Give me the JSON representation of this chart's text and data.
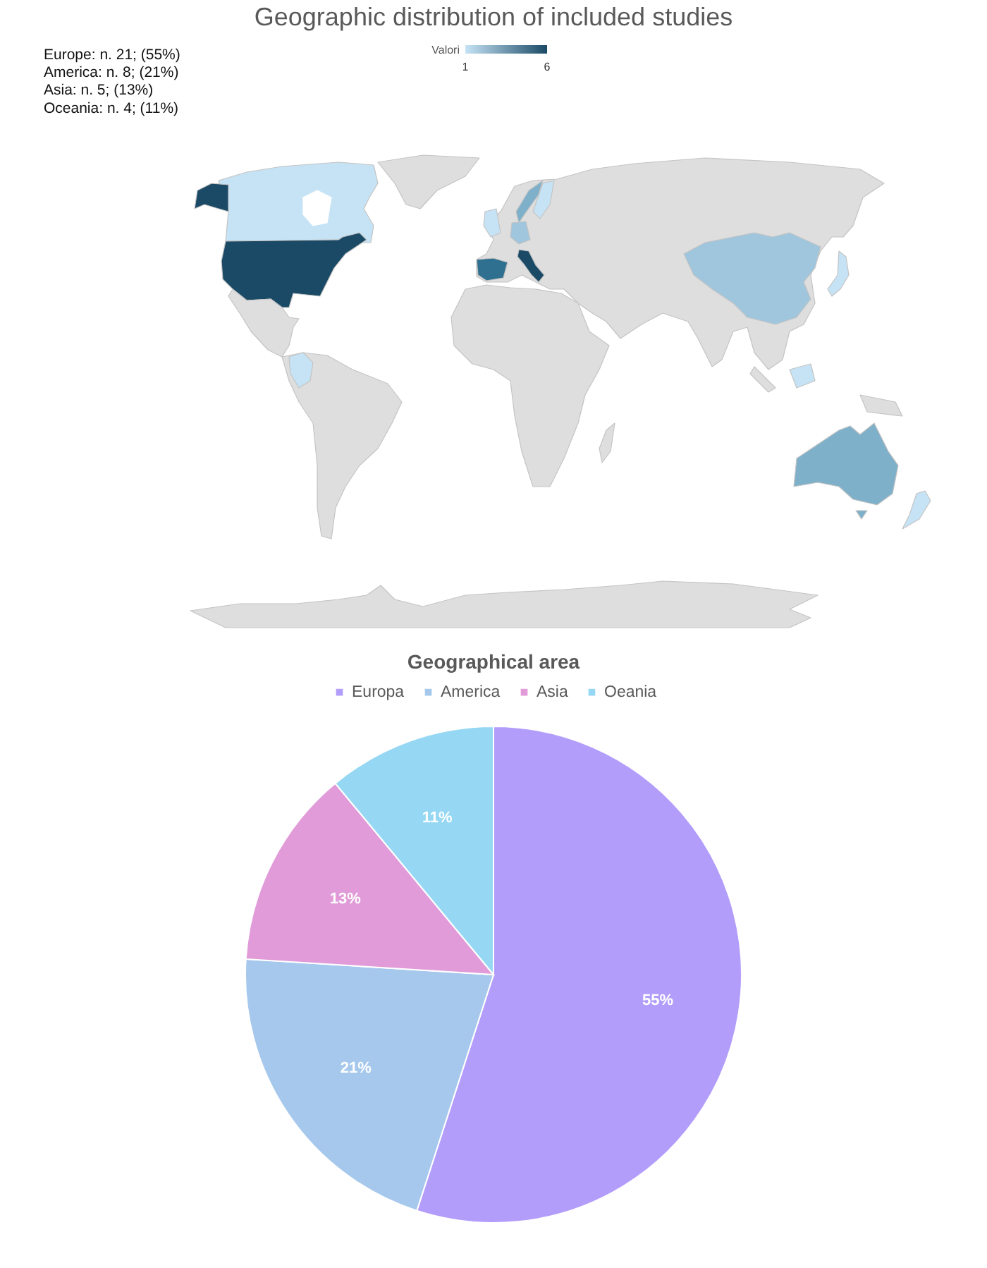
{
  "chart_data": [
    {
      "type": "other",
      "title": "Geographic distribution of included studies",
      "clabel": "Valori",
      "annotations": [
        "Europe: n. 21; (55%)",
        "America: n. 8; (21%)",
        "Asia: n. 5; (13%)",
        "Oceania: n. 4; (11%)",
        "1",
        "6"
      ]
    },
    {
      "type": "pie",
      "title": "Geographical area",
      "categories": [
        "Europa",
        "America",
        "Asia",
        "Oeania"
      ],
      "values": [
        55,
        21,
        13,
        11
      ],
      "colors": [
        "#b39dfb",
        "#a6c8ec",
        "#e09bd8",
        "#96d8f4"
      ],
      "value_labels": [
        "55%",
        "21%",
        "13%",
        "11%"
      ],
      "legend": "top"
    }
  ]
}
